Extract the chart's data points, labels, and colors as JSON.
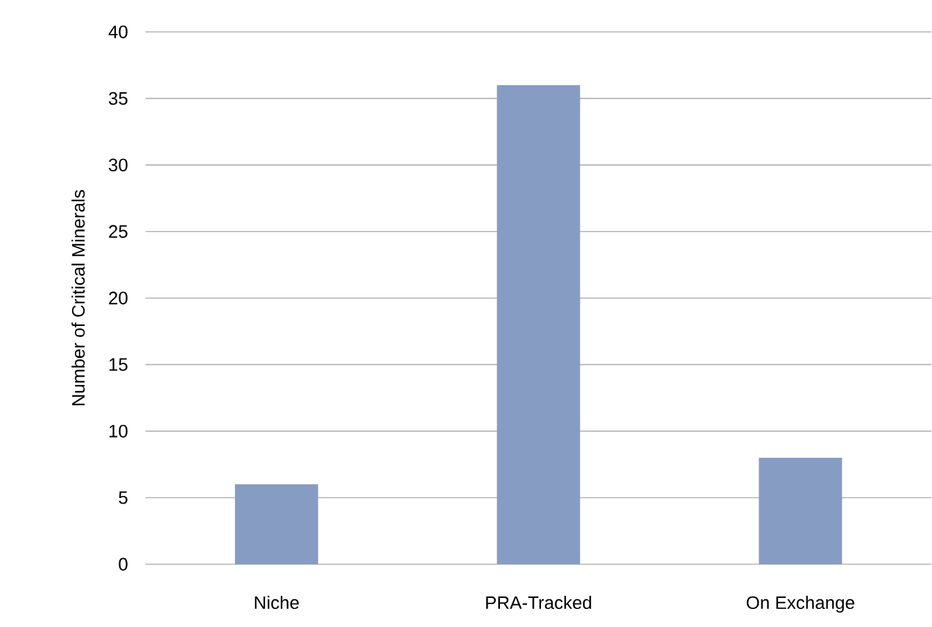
{
  "chart_data": {
    "type": "bar",
    "ylabel": "Number of Critical Minerals",
    "categories": [
      "Niche",
      "PRA-Tracked",
      "On Exchange"
    ],
    "values": [
      6,
      36,
      8
    ],
    "color": "#869cc3",
    "ylim": [
      0,
      40
    ],
    "yticks": [
      0,
      5,
      10,
      15,
      20,
      25,
      30,
      35,
      40
    ],
    "grid": "y"
  }
}
